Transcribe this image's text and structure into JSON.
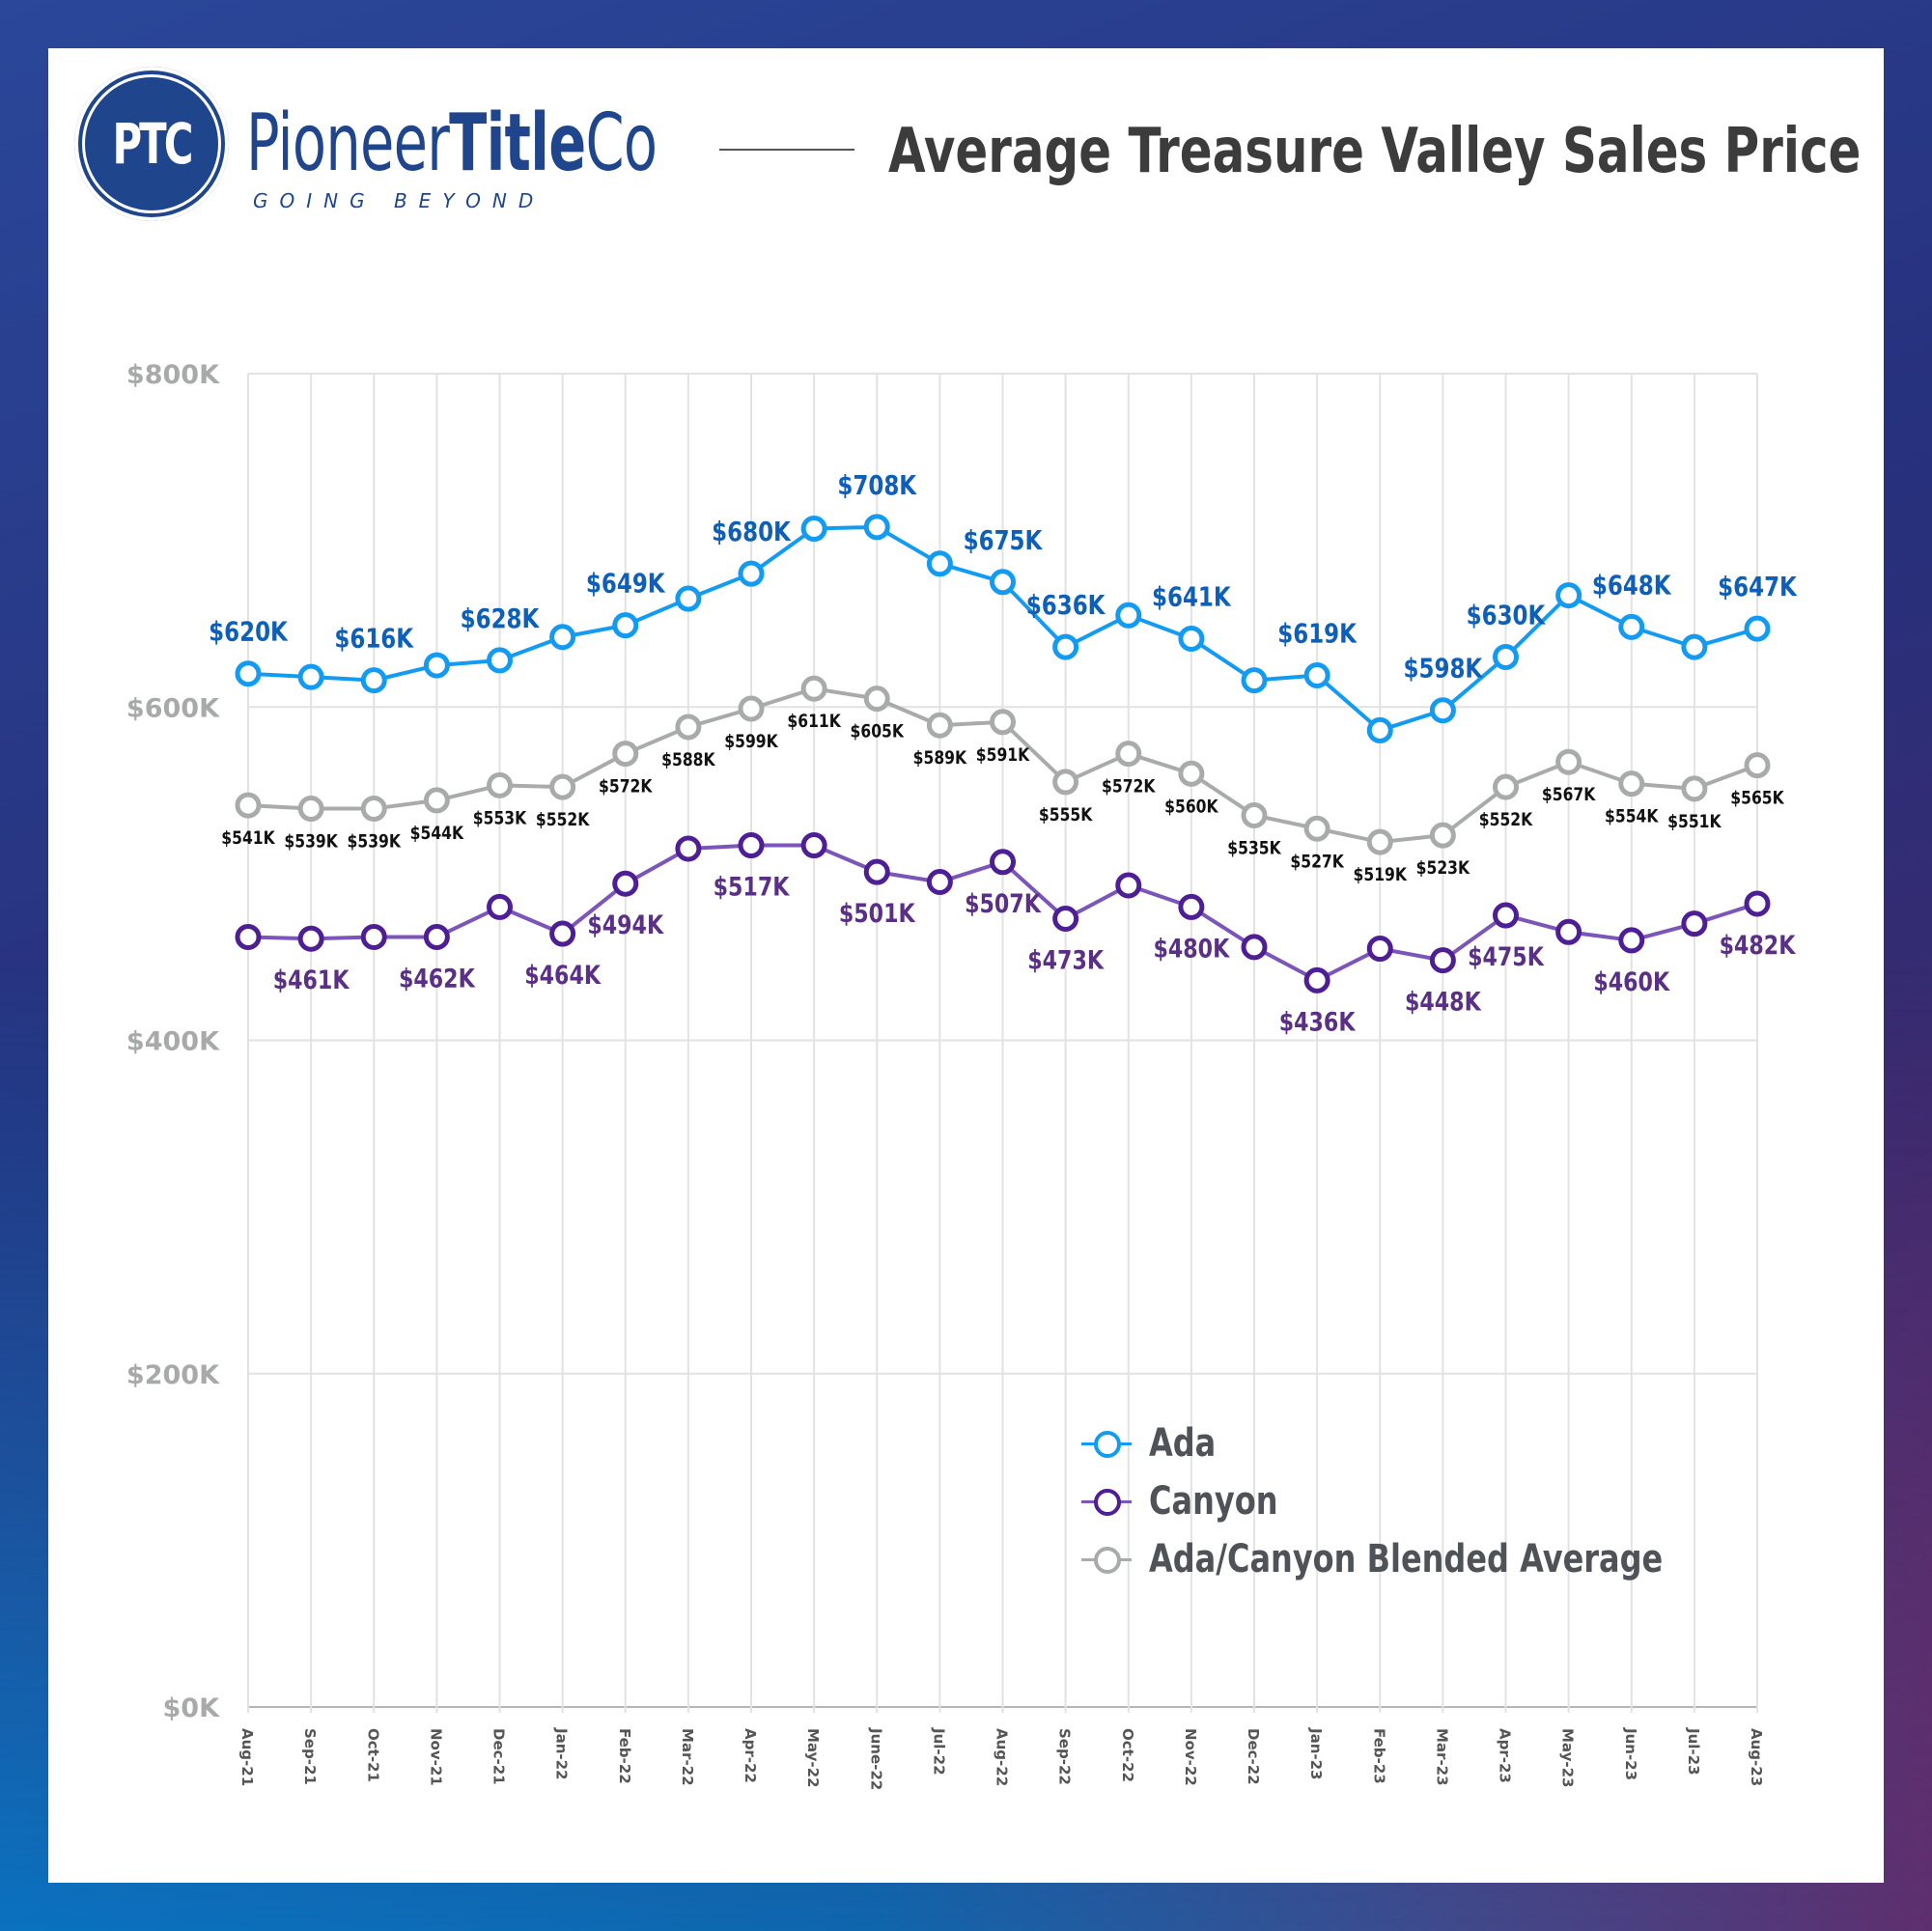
{
  "brand": {
    "initials": "PTC",
    "name_light_1": "Pioneer",
    "name_bold": "Title",
    "name_light_2": "Co",
    "tagline": "GOING BEYOND"
  },
  "colors": {
    "ada": "#139bf2",
    "ada_label": "#0d5fb8",
    "canyon": "#4e1e94",
    "canyon_line": "#7b55b8",
    "canyon_label": "#5a2f86",
    "blended": "#a9abab",
    "blended_label": "#111111",
    "grid": "#e2e2e2",
    "brand": "#1f468c"
  },
  "chart_data": {
    "type": "line",
    "title": "Average Treasure Valley Sales Price",
    "xlabel": "",
    "ylabel": "",
    "ylim": [
      0,
      800
    ],
    "yunit": "thousands USD",
    "yticks": [
      "$0K",
      "$200K",
      "$400K",
      "$600K",
      "$800K"
    ],
    "ytick_values": [
      0,
      200,
      400,
      600,
      800
    ],
    "grid": true,
    "legend_position": "bottom-right",
    "categories": [
      "Aug-21",
      "Sep-21",
      "Oct-21",
      "Nov-21",
      "Dec-21",
      "Jan-22",
      "Feb-22",
      "Mar-22",
      "Apr-22",
      "May-22",
      "June-22",
      "Jul-22",
      "Aug-22",
      "Sep-22",
      "Oct-22",
      "Nov-22",
      "Dec-22",
      "Jan-23",
      "Feb-23",
      "Mar-23",
      "Apr-23",
      "May-23",
      "Jun-23",
      "Jul-23",
      "Aug-23"
    ],
    "series": [
      {
        "name": "Ada",
        "key": "ada",
        "values": [
          620,
          618,
          616,
          625,
          628,
          642,
          649,
          665,
          680,
          707,
          708,
          686,
          675,
          636,
          655,
          641,
          616,
          619,
          586,
          598,
          630,
          667,
          648,
          636,
          647
        ],
        "labels": [
          "$620K",
          null,
          "$616K",
          null,
          "$628K",
          null,
          "$649K",
          null,
          "$680K",
          null,
          "$708K",
          null,
          "$675K",
          "$636K",
          null,
          "$641K",
          null,
          "$619K",
          null,
          "$598K",
          "$630K",
          null,
          "$648K",
          null,
          "$647K"
        ]
      },
      {
        "name": "Canyon",
        "key": "canyon",
        "values": [
          462,
          461,
          462,
          462,
          480,
          464,
          494,
          515,
          517,
          517,
          501,
          495,
          507,
          473,
          493,
          480,
          456,
          436,
          455,
          448,
          475,
          465,
          460,
          470,
          482
        ],
        "labels": [
          null,
          "$461K",
          null,
          "$462K",
          null,
          "$464K",
          "$494K",
          null,
          "$517K",
          null,
          "$501K",
          null,
          "$507K",
          "$473K",
          null,
          "$480K",
          null,
          "$436K",
          null,
          "$448K",
          "$475K",
          null,
          "$460K",
          null,
          "$482K"
        ]
      },
      {
        "name": "Ada/Canyon Blended Average",
        "key": "blended",
        "values": [
          541,
          539,
          539,
          544,
          553,
          552,
          572,
          588,
          599,
          611,
          605,
          589,
          591,
          555,
          572,
          560,
          535,
          527,
          519,
          523,
          552,
          567,
          554,
          551,
          565
        ],
        "labels": [
          "$541K",
          "$539K",
          "$539K",
          "$544K",
          "$553K",
          "$552K",
          "$572K",
          "$588K",
          "$599K",
          "$611K",
          "$605K",
          "$589K",
          "$591K",
          "$555K",
          "$572K",
          "$560K",
          "$535K",
          "$527K",
          "$519K",
          "$523K",
          "$552K",
          "$567K",
          "$554K",
          "$551K",
          "$565K"
        ]
      }
    ]
  },
  "legend": {
    "items": [
      {
        "label": "Ada"
      },
      {
        "label": "Canyon"
      },
      {
        "label": "Ada/Canyon Blended Average"
      }
    ]
  }
}
